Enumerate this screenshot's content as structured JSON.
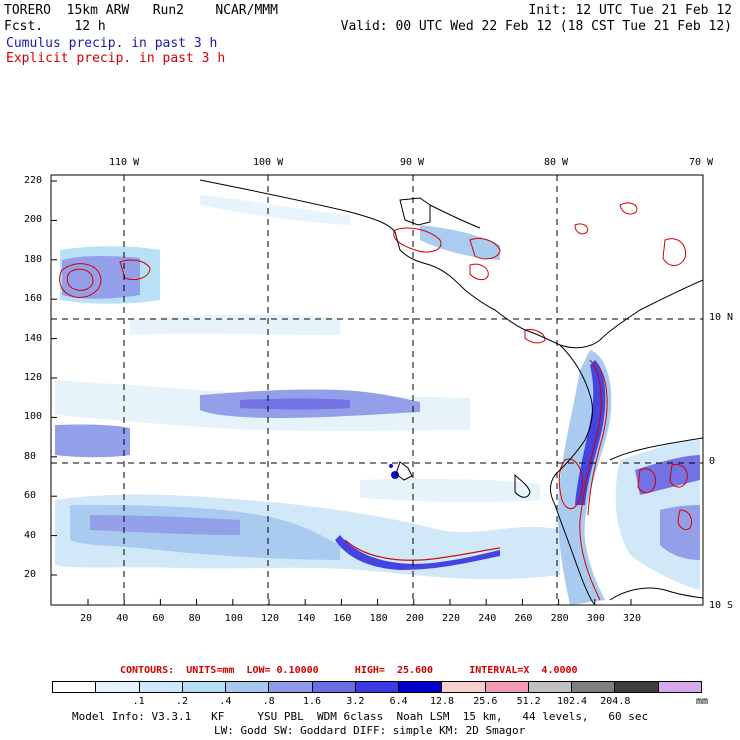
{
  "header": {
    "title_left": "TORERO  15km ARW   Run2    NCAR/MMM",
    "fcst_left": "Fcst.    12 h",
    "init_right": "Init: 12 UTC Tue 21 Feb 12",
    "valid_right": "Valid: 00 UTC Wed 22 Feb 12 (18 CST Tue 21 Feb 12)"
  },
  "legend": {
    "cumulus": "Cumulus precip. in past 3 h",
    "explicit": "Explicit precip. in past 3 h"
  },
  "axes": {
    "top_lon": [
      "110 W",
      "100 W",
      "90 W",
      "80 W",
      "70 W"
    ],
    "right_lat": [
      "10 N",
      "0",
      "10 S"
    ],
    "left_y": [
      "220",
      "200",
      "180",
      "160",
      "140",
      "120",
      "100",
      "80",
      "60",
      "40",
      "20"
    ],
    "bottom_x": [
      "20",
      "40",
      "60",
      "80",
      "100",
      "120",
      "140",
      "160",
      "180",
      "200",
      "220",
      "240",
      "260",
      "280",
      "300",
      "320"
    ]
  },
  "contour_info": {
    "label": "CONTOURS:  UNITS=mm  LOW= 0.10000      HIGH=  25.600      INTERVAL=X  4.0000"
  },
  "colorbar": {
    "colors": [
      "#ffffff",
      "#e6f3fb",
      "#cfe7f8",
      "#b6e0f6",
      "#a6c9f0",
      "#8f9ae9",
      "#6c6ce3",
      "#3a3ae0",
      "#0000c8",
      "#f6cfcf",
      "#f59ab4",
      "#c0c0c0",
      "#7f7f7f",
      "#3e3e3e",
      "#d8a8ee"
    ],
    "labels": [
      ".1",
      ".2",
      ".4",
      ".8",
      "1.6",
      "3.2",
      "6.4",
      "12.8",
      "25.6",
      "51.2",
      "102.4",
      "204.8"
    ],
    "unit": "mm"
  },
  "model_info": {
    "line1": "Model Info: V3.3.1   KF     YSU PBL  WDM 6class  Noah LSM  15 km,   44 levels,   60 sec",
    "line2": "LW: Godd SW: Goddard DIFF: simple KM: 2D Smagor"
  }
}
